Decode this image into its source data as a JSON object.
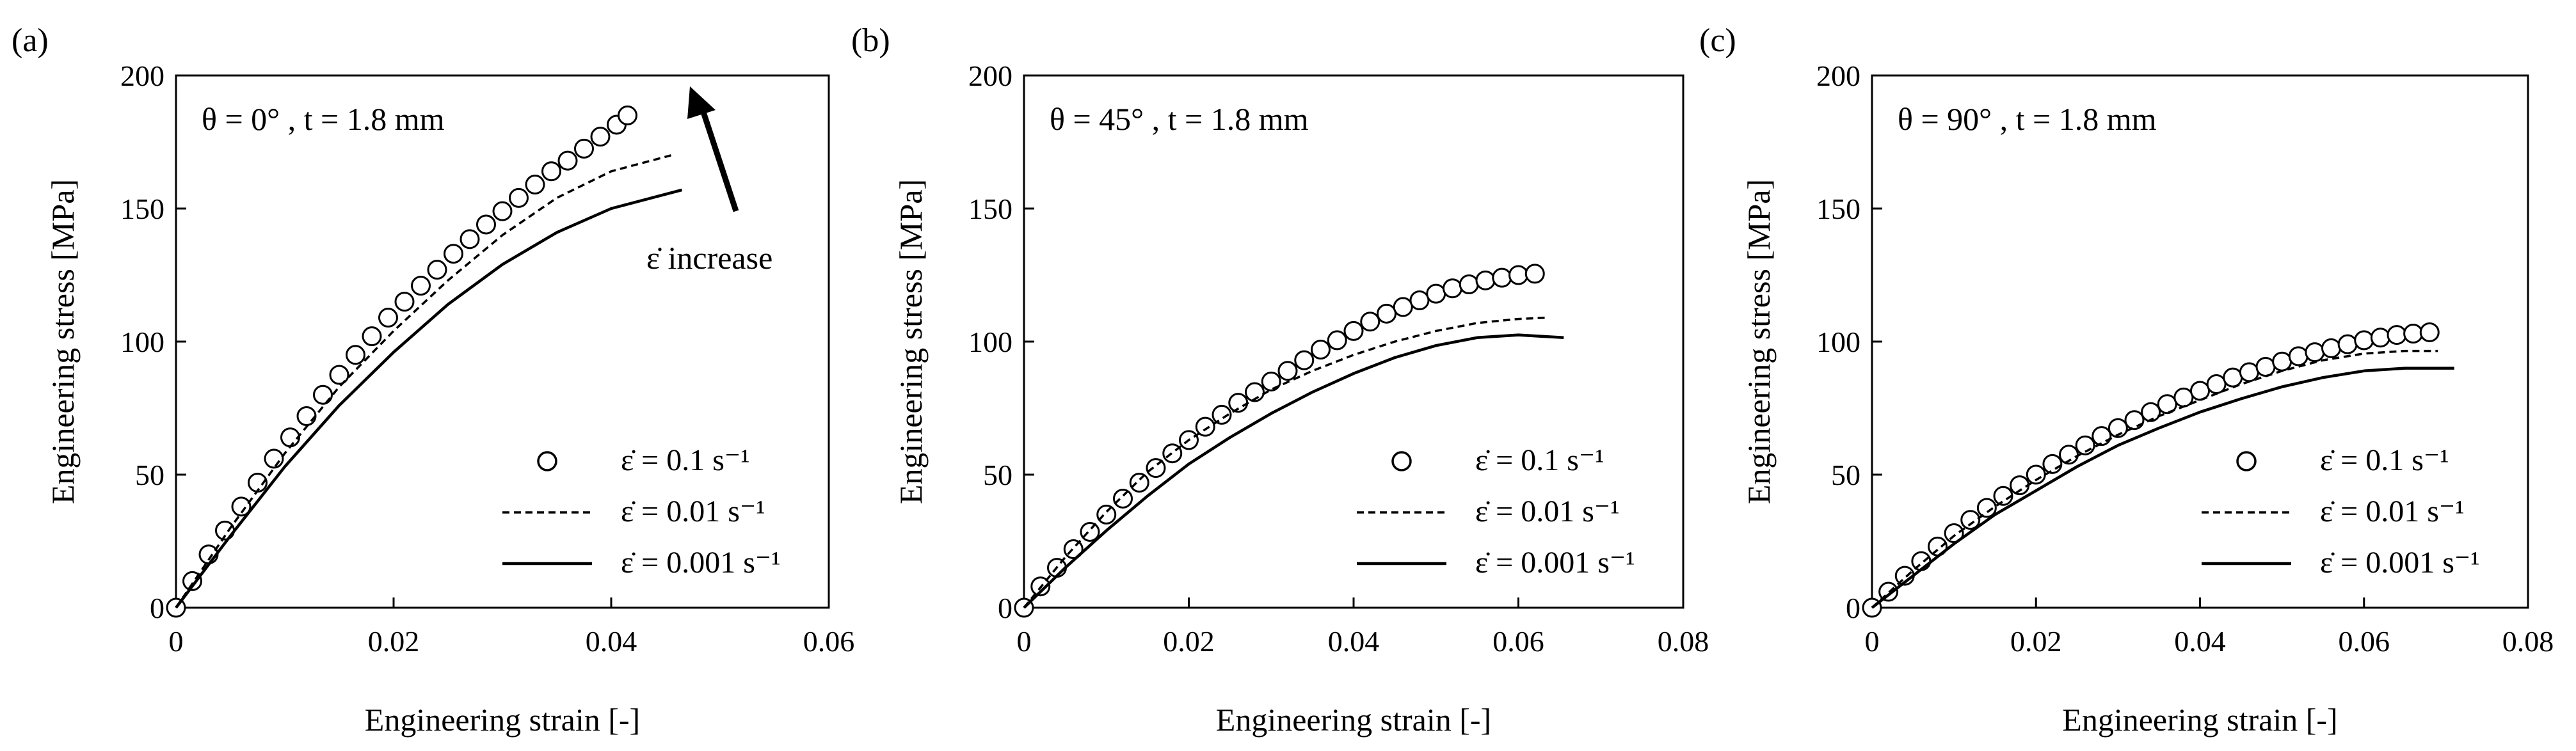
{
  "chart_data": [
    {
      "type": "scatter",
      "panel_label": "(a)",
      "condition_text": "θ = 0° , t = 1.8 mm",
      "xlabel": "Engineering strain [-]",
      "ylabel": "Engineering stress [MPa]",
      "xlim": [
        0,
        0.06
      ],
      "ylim": [
        0,
        200
      ],
      "xticks": [
        0,
        0.02,
        0.04,
        0.06
      ],
      "xtick_labels": [
        "0",
        "0.02",
        "0.04",
        "0.06"
      ],
      "yticks": [
        0,
        50,
        100,
        150,
        200
      ],
      "ytick_labels": [
        "0",
        "50",
        "100",
        "150",
        "200"
      ],
      "grid": false,
      "legend_position": "bottom-right",
      "annotation": "ε̇ increase",
      "series": [
        {
          "name": "ε̇ = 0.1 s⁻¹",
          "style": "circles",
          "x": [
            0,
            0.0015,
            0.003,
            0.0045,
            0.006,
            0.0075,
            0.009,
            0.0105,
            0.012,
            0.0135,
            0.015,
            0.0165,
            0.018,
            0.0195,
            0.021,
            0.0225,
            0.024,
            0.0255,
            0.027,
            0.0285,
            0.03,
            0.0315,
            0.033,
            0.0345,
            0.036,
            0.0375,
            0.039,
            0.0405,
            0.0415
          ],
          "y": [
            0,
            10,
            20,
            29,
            38,
            47,
            56,
            64,
            72,
            80,
            87.5,
            95,
            102,
            109,
            115,
            121,
            127,
            133,
            138.5,
            144,
            149,
            154,
            159,
            164,
            168,
            172.5,
            177,
            181.5,
            185
          ]
        },
        {
          "name": "ε̇ = 0.01 s⁻¹",
          "style": "dashed",
          "x": [
            0,
            0.005,
            0.01,
            0.015,
            0.02,
            0.025,
            0.03,
            0.035,
            0.04,
            0.0455
          ],
          "y": [
            0,
            30,
            58,
            83,
            104,
            123,
            140,
            154,
            164,
            170
          ]
        },
        {
          "name": "ε̇ = 0.001 s⁻¹",
          "style": "solid",
          "x": [
            0,
            0.005,
            0.01,
            0.015,
            0.02,
            0.025,
            0.03,
            0.035,
            0.04,
            0.0465
          ],
          "y": [
            0,
            27,
            53,
            76,
            96,
            114,
            129,
            141,
            150,
            157
          ]
        }
      ]
    },
    {
      "type": "scatter",
      "panel_label": "(b)",
      "condition_text": "θ = 45° , t = 1.8 mm",
      "xlabel": "Engineering strain [-]",
      "ylabel": "Engineering stress [MPa]",
      "xlim": [
        0,
        0.08
      ],
      "ylim": [
        0,
        200
      ],
      "xticks": [
        0,
        0.02,
        0.04,
        0.06,
        0.08
      ],
      "xtick_labels": [
        "0",
        "0.02",
        "0.04",
        "0.06",
        "0.08"
      ],
      "yticks": [
        0,
        50,
        100,
        150,
        200
      ],
      "ytick_labels": [
        "0",
        "50",
        "100",
        "150",
        "200"
      ],
      "grid": false,
      "legend_position": "bottom-right",
      "series": [
        {
          "name": "ε̇ = 0.1 s⁻¹",
          "style": "circles",
          "x": [
            0,
            0.002,
            0.004,
            0.006,
            0.008,
            0.01,
            0.012,
            0.014,
            0.016,
            0.018,
            0.02,
            0.022,
            0.024,
            0.026,
            0.028,
            0.03,
            0.032,
            0.034,
            0.036,
            0.038,
            0.04,
            0.042,
            0.044,
            0.046,
            0.048,
            0.05,
            0.052,
            0.054,
            0.056,
            0.058,
            0.06,
            0.062
          ],
          "y": [
            0,
            8,
            15,
            22,
            28.5,
            35,
            41,
            47,
            52.5,
            58,
            63,
            68,
            72.5,
            77,
            81,
            85,
            89,
            93,
            97,
            100.5,
            104,
            107.5,
            110.5,
            113,
            115.5,
            118,
            120,
            121.5,
            123,
            124,
            125,
            125.5
          ]
        },
        {
          "name": "ε̇ = 0.01 s⁻¹",
          "style": "dashed",
          "x": [
            0,
            0.005,
            0.01,
            0.015,
            0.02,
            0.025,
            0.03,
            0.035,
            0.04,
            0.045,
            0.05,
            0.055,
            0.06,
            0.0635
          ],
          "y": [
            0,
            19,
            36,
            51,
            63,
            73,
            82,
            89,
            95,
            100,
            104,
            107,
            108.5,
            109
          ]
        },
        {
          "name": "ε̇ = 0.001 s⁻¹",
          "style": "solid",
          "x": [
            0,
            0.005,
            0.01,
            0.015,
            0.02,
            0.025,
            0.03,
            0.035,
            0.04,
            0.045,
            0.05,
            0.055,
            0.06,
            0.0655
          ],
          "y": [
            0,
            15,
            29,
            42,
            54,
            64,
            73,
            81,
            88,
            94,
            98.5,
            101.5,
            102.5,
            101.5
          ]
        }
      ]
    },
    {
      "type": "scatter",
      "panel_label": "(c)",
      "condition_text": "θ = 90° , t = 1.8 mm",
      "xlabel": "Engineering strain [-]",
      "ylabel": "Engineering stress [MPa]",
      "xlim": [
        0,
        0.08
      ],
      "ylim": [
        0,
        200
      ],
      "xticks": [
        0,
        0.02,
        0.04,
        0.06,
        0.08
      ],
      "xtick_labels": [
        "0",
        "0.02",
        "0.04",
        "0.06",
        "0.08"
      ],
      "yticks": [
        0,
        50,
        100,
        150,
        200
      ],
      "ytick_labels": [
        "0",
        "50",
        "100",
        "150",
        "200"
      ],
      "grid": false,
      "legend_position": "bottom-right",
      "series": [
        {
          "name": "ε̇ = 0.1 s⁻¹",
          "style": "circles",
          "x": [
            0,
            0.002,
            0.004,
            0.006,
            0.008,
            0.01,
            0.012,
            0.014,
            0.016,
            0.018,
            0.02,
            0.022,
            0.024,
            0.026,
            0.028,
            0.03,
            0.032,
            0.034,
            0.036,
            0.038,
            0.04,
            0.042,
            0.044,
            0.046,
            0.048,
            0.05,
            0.052,
            0.054,
            0.056,
            0.058,
            0.06,
            0.062,
            0.064,
            0.066,
            0.068
          ],
          "y": [
            0,
            6,
            12,
            17.5,
            23,
            28,
            33,
            37.5,
            42,
            46,
            50,
            54,
            57.5,
            61,
            64.5,
            67.5,
            70.5,
            73.5,
            76.5,
            79,
            81.5,
            84,
            86.5,
            88.5,
            90.5,
            92.5,
            94.5,
            96,
            97.5,
            99,
            100.5,
            101.5,
            102.5,
            103,
            103.5
          ]
        },
        {
          "name": "ε̇ = 0.01 s⁻¹",
          "style": "dashed",
          "x": [
            0,
            0.005,
            0.01,
            0.015,
            0.02,
            0.025,
            0.03,
            0.035,
            0.04,
            0.045,
            0.05,
            0.055,
            0.06,
            0.065,
            0.069
          ],
          "y": [
            0,
            14,
            27,
            38,
            48,
            57,
            65,
            72,
            78,
            84,
            89,
            93,
            95.5,
            96.5,
            96.5
          ]
        },
        {
          "name": "ε̇ = 0.001 s⁻¹",
          "style": "solid",
          "x": [
            0,
            0.005,
            0.01,
            0.015,
            0.02,
            0.025,
            0.03,
            0.035,
            0.04,
            0.045,
            0.05,
            0.055,
            0.06,
            0.065,
            0.071
          ],
          "y": [
            0,
            12,
            24,
            35,
            44,
            53,
            61,
            67.5,
            73.5,
            78.5,
            83,
            86.5,
            89,
            90,
            90
          ]
        }
      ]
    }
  ]
}
